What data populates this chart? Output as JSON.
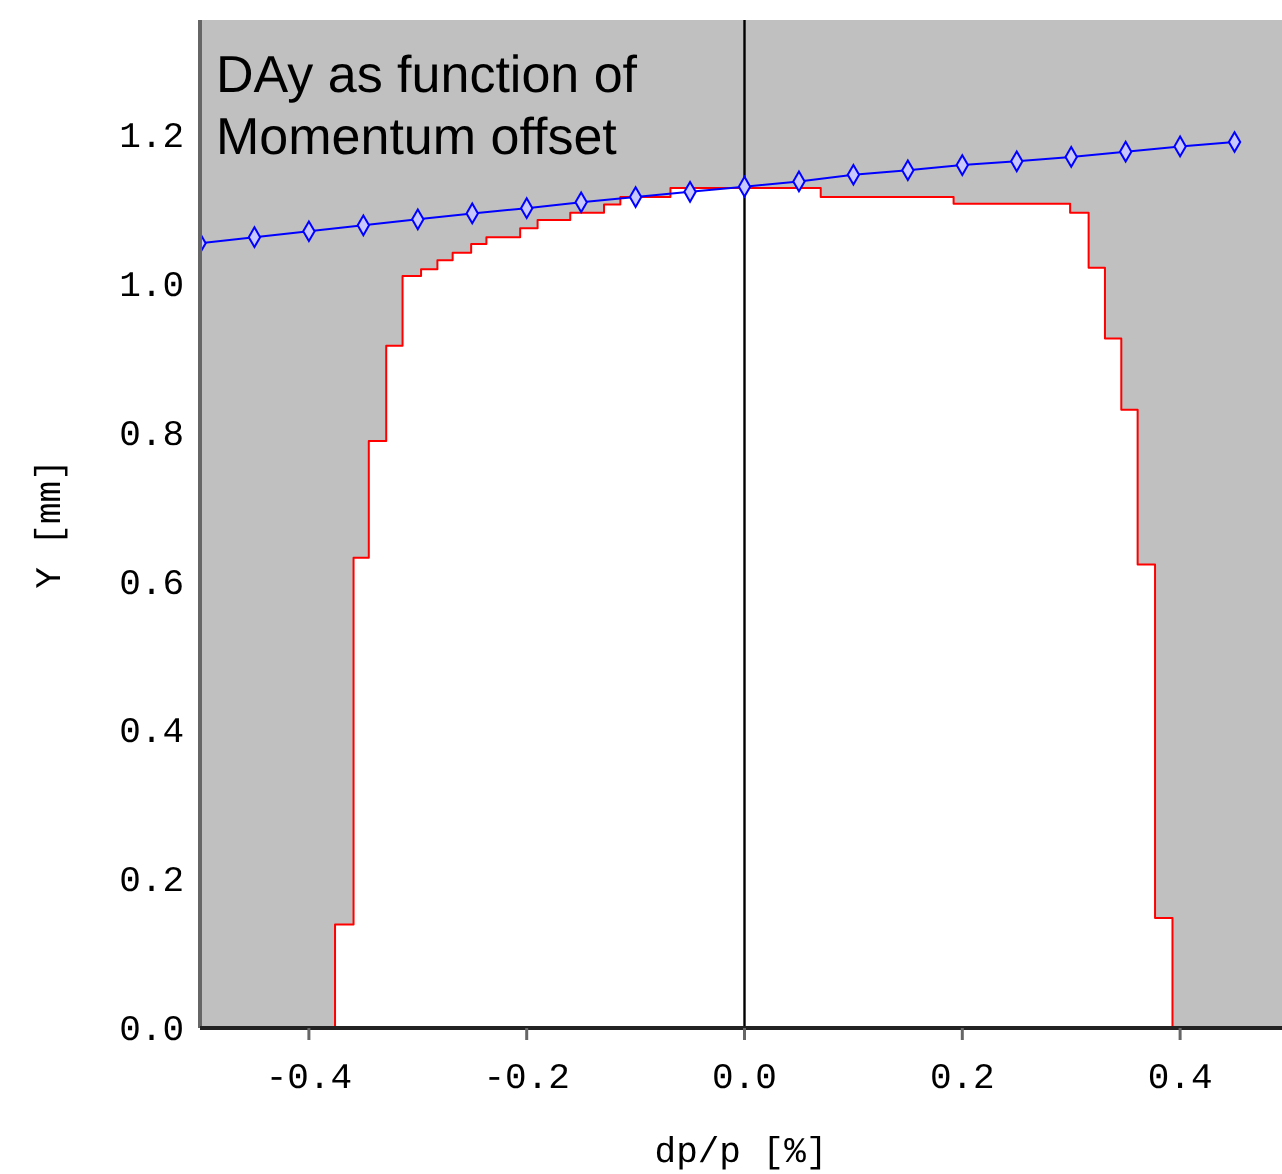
{
  "chart_data": {
    "type": "line",
    "title": "DAy as function of\nMomentum offset",
    "xlabel": "dp/p [%]",
    "ylabel": "Y [mm]",
    "xlim": [
      -0.5,
      0.5
    ],
    "ylim": [
      0,
      1.355
    ],
    "xticks": [
      {
        "value": -0.4,
        "label": "-0.4"
      },
      {
        "value": -0.2,
        "label": "-0.2"
      },
      {
        "value": 0,
        "label": "0.0"
      },
      {
        "value": 0.2,
        "label": "0.2"
      },
      {
        "value": 0.4,
        "label": "0.4"
      }
    ],
    "yticks": [
      {
        "value": 0,
        "label": "0.0"
      },
      {
        "value": 0.2,
        "label": "0.2"
      },
      {
        "value": 0.4,
        "label": "0.4"
      },
      {
        "value": 0.6,
        "label": "0.6"
      },
      {
        "value": 0.8,
        "label": "0.8"
      },
      {
        "value": 1,
        "label": "1.0"
      },
      {
        "value": 1.2,
        "label": "1.2"
      }
    ],
    "grid": false,
    "ref_lines": [
      {
        "axis": "x",
        "value": 0,
        "color": "#000000"
      }
    ],
    "series": [
      {
        "color": "#ff0000",
        "marker": "none",
        "x": [
          -0.376,
          -0.376,
          -0.359,
          -0.359,
          -0.345,
          -0.345,
          -0.329,
          -0.329,
          -0.314,
          -0.314,
          -0.297,
          -0.297,
          -0.282,
          -0.282,
          -0.268,
          -0.268,
          -0.251,
          -0.251,
          -0.237,
          -0.237,
          -0.206,
          -0.206,
          -0.19,
          -0.19,
          -0.16,
          -0.16,
          -0.129,
          -0.129,
          -0.114,
          -0.114,
          -0.068,
          -0.068,
          0.07,
          0.07,
          0.192,
          0.192,
          0.299,
          0.299,
          0.316,
          0.316,
          0.331,
          0.331,
          0.346,
          0.346,
          0.361,
          0.361,
          0.377,
          0.377,
          0.393,
          0.393
        ],
        "values": [
          0,
          0.139,
          0.139,
          0.632,
          0.632,
          0.789,
          0.789,
          0.917,
          0.917,
          1.011,
          1.011,
          1.02,
          1.02,
          1.032,
          1.032,
          1.042,
          1.042,
          1.054,
          1.054,
          1.063,
          1.063,
          1.075,
          1.075,
          1.086,
          1.086,
          1.096,
          1.096,
          1.107,
          1.107,
          1.117,
          1.117,
          1.129,
          1.129,
          1.117,
          1.117,
          1.108,
          1.108,
          1.096,
          1.096,
          1.022,
          1.022,
          0.927,
          0.927,
          0.831,
          0.831,
          0.623,
          0.623,
          0.148,
          0.148,
          0
        ]
      },
      {
        "color": "#0000ff",
        "marker": "diamond",
        "x": [
          -0.5,
          -0.45,
          -0.4,
          -0.35,
          -0.3,
          -0.25,
          -0.2,
          -0.15,
          -0.1,
          -0.05,
          0,
          0.05,
          0.1,
          0.15,
          0.2,
          0.25,
          0.3,
          0.35,
          0.4,
          0.45
        ],
        "values": [
          1.055,
          1.063,
          1.071,
          1.079,
          1.087,
          1.095,
          1.102,
          1.11,
          1.117,
          1.124,
          1.131,
          1.138,
          1.147,
          1.153,
          1.16,
          1.165,
          1.171,
          1.178,
          1.185,
          1.191
        ]
      }
    ]
  }
}
